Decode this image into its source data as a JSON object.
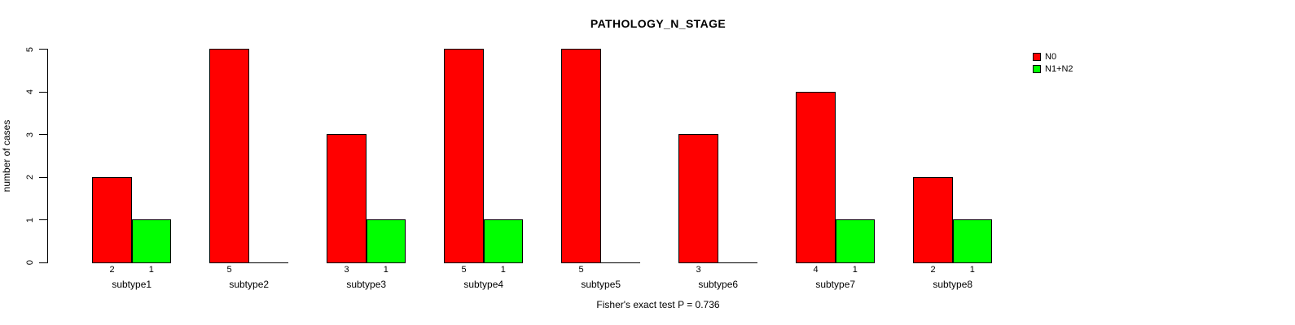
{
  "title": "PATHOLOGY_N_STAGE",
  "ylabel": "number of cases",
  "footer": "Fisher's exact test P = 0.736",
  "colors": {
    "n0": "#FF0000",
    "n1n2": "#00FF00",
    "axis": "#000000",
    "background": "#FFFFFF"
  },
  "chart_data": {
    "type": "bar",
    "title": "PATHOLOGY_N_STAGE",
    "xlabel": "",
    "ylabel": "number of cases",
    "categories": [
      "subtype1",
      "subtype2",
      "subtype3",
      "subtype4",
      "subtype5",
      "subtype6",
      "subtype7",
      "subtype8"
    ],
    "series": [
      {
        "name": "N0",
        "color": "#FF0000",
        "values": [
          2,
          5,
          3,
          5,
          5,
          3,
          4,
          2
        ]
      },
      {
        "name": "N1+N2",
        "color": "#00FF00",
        "values": [
          1,
          0,
          1,
          1,
          0,
          0,
          1,
          1
        ]
      }
    ],
    "bar_value_labels": [
      [
        "2",
        "1"
      ],
      [
        "5",
        ""
      ],
      [
        "3",
        "1"
      ],
      [
        "5",
        "1"
      ],
      [
        "5",
        ""
      ],
      [
        "3",
        ""
      ],
      [
        "4",
        "1"
      ],
      [
        "2",
        "1"
      ]
    ],
    "ylim": [
      0,
      5
    ],
    "yticks": [
      "0",
      "1",
      "2",
      "3",
      "4",
      "5"
    ],
    "grid": false,
    "legend_position": "top-right",
    "legend_entries": [
      {
        "label": "N0",
        "color": "#FF0000"
      },
      {
        "label": "N1+N2",
        "color": "#00FF00"
      }
    ],
    "annotation": "Fisher's exact test P = 0.736"
  }
}
